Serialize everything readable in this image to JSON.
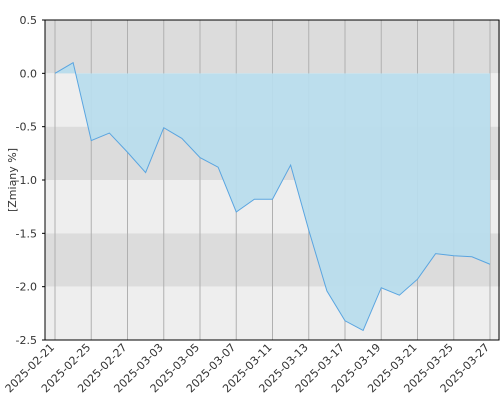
{
  "chart_data": {
    "type": "area",
    "y_label": "[Zmiany %]",
    "x": [
      "2025-02-21",
      "2025-02-24",
      "2025-02-25",
      "2025-02-26",
      "2025-02-27",
      "2025-02-28",
      "2025-03-03",
      "2025-03-04",
      "2025-03-05",
      "2025-03-06",
      "2025-03-07",
      "2025-03-10",
      "2025-03-11",
      "2025-03-12",
      "2025-03-13",
      "2025-03-14",
      "2025-03-17",
      "2025-03-18",
      "2025-03-19",
      "2025-03-20",
      "2025-03-21",
      "2025-03-24",
      "2025-03-25",
      "2025-03-26",
      "2025-03-27"
    ],
    "series": [
      {
        "name": "Zmiany",
        "color": "#5aa5e0",
        "fill": "#b8dcec",
        "values": [
          0,
          0.1,
          -0.63,
          -0.56,
          -0.74,
          -0.93,
          -0.51,
          -0.61,
          -0.79,
          -0.88,
          -1.3,
          -1.18,
          -1.18,
          -0.86,
          -1.47,
          -2.04,
          -2.32,
          -2.41,
          -2.01,
          -2.08,
          -1.93,
          -1.69,
          -1.71,
          -1.72,
          -1.79
        ]
      }
    ],
    "xticks": [
      "2025-02-21",
      "2025-02-25",
      "2025-02-27",
      "2025-03-03",
      "2025-03-05",
      "2025-03-07",
      "2025-03-11",
      "2025-03-13",
      "2025-03-17",
      "2025-03-19",
      "2025-03-21",
      "2025-03-25",
      "2025-03-27"
    ],
    "ylim": [
      -2.5,
      0.5
    ],
    "yticks": [
      {
        "value": 0.5,
        "label": "0.5"
      },
      {
        "value": 0,
        "label": "0.0"
      },
      {
        "value": -0.5,
        "label": "-0.5"
      },
      {
        "value": -1,
        "label": "-1.0"
      },
      {
        "value": -1.5,
        "label": "-1.5"
      },
      {
        "value": -2,
        "label": "-2.0"
      },
      {
        "value": -2.5,
        "label": "-2.5"
      }
    ],
    "grid": true
  }
}
